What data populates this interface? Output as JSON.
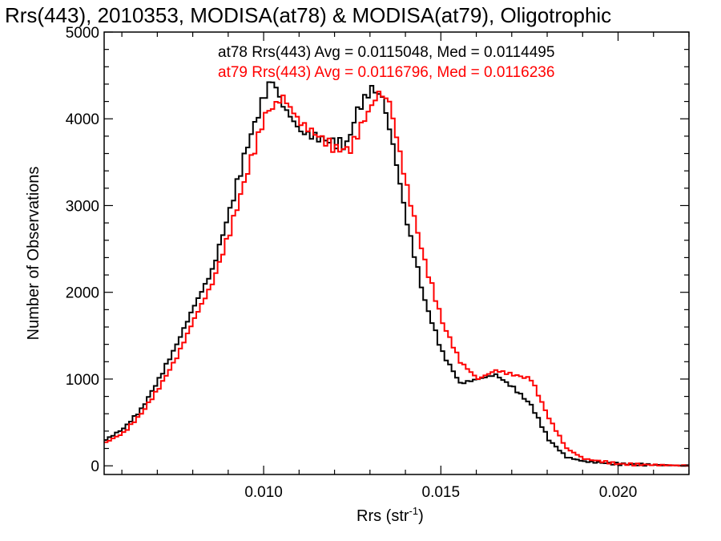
{
  "chart_data": {
    "type": "line",
    "title": "Rrs(443), 2010353, MODISA(at78) & MODISA(at79), Oligotrophic",
    "xlabel_main": "Rrs (str",
    "xlabel_sup": "-1",
    "xlabel_close": ")",
    "ylabel": "Number of Observations",
    "xlim": [
      0.0055,
      0.022
    ],
    "ylim": [
      -100,
      5000
    ],
    "xticks": [
      0.01,
      0.015,
      0.02
    ],
    "xtick_labels": [
      "0.010",
      "0.015",
      "0.020"
    ],
    "yticks": [
      0,
      1000,
      2000,
      3000,
      4000,
      5000
    ],
    "ytick_labels": [
      "0",
      "1000",
      "2000",
      "3000",
      "4000",
      "5000"
    ],
    "grid": false,
    "legend_placement": "top-right",
    "series": [
      {
        "name": "at78",
        "color": "#000000",
        "legend": "at78 Rrs(443) Avg = 0.0115048, Med = 0.0114495",
        "points": [
          [
            0.0055,
            300
          ],
          [
            0.006,
            430
          ],
          [
            0.0065,
            650
          ],
          [
            0.007,
            1000
          ],
          [
            0.0075,
            1400
          ],
          [
            0.008,
            1850
          ],
          [
            0.0085,
            2250
          ],
          [
            0.009,
            2950
          ],
          [
            0.0095,
            3700
          ],
          [
            0.01,
            4300
          ],
          [
            0.0102,
            4450
          ],
          [
            0.0105,
            4150
          ],
          [
            0.011,
            3850
          ],
          [
            0.0115,
            3780
          ],
          [
            0.012,
            3720
          ],
          [
            0.0123,
            3700
          ],
          [
            0.0126,
            4100
          ],
          [
            0.013,
            4350
          ],
          [
            0.0133,
            4250
          ],
          [
            0.0136,
            3700
          ],
          [
            0.014,
            2800
          ],
          [
            0.0145,
            1900
          ],
          [
            0.015,
            1300
          ],
          [
            0.0155,
            950
          ],
          [
            0.016,
            1000
          ],
          [
            0.0165,
            1050
          ],
          [
            0.017,
            900
          ],
          [
            0.0175,
            700
          ],
          [
            0.018,
            300
          ],
          [
            0.0185,
            100
          ],
          [
            0.019,
            50
          ],
          [
            0.02,
            20
          ],
          [
            0.022,
            0
          ]
        ]
      },
      {
        "name": "at79",
        "color": "#ff0000",
        "legend": "at79 Rrs(443) Avg = 0.0116796, Med = 0.0116236",
        "points": [
          [
            0.0055,
            270
          ],
          [
            0.006,
            380
          ],
          [
            0.0065,
            600
          ],
          [
            0.007,
            900
          ],
          [
            0.0075,
            1250
          ],
          [
            0.008,
            1700
          ],
          [
            0.0085,
            2100
          ],
          [
            0.009,
            2700
          ],
          [
            0.0095,
            3400
          ],
          [
            0.01,
            4050
          ],
          [
            0.0105,
            4250
          ],
          [
            0.011,
            3950
          ],
          [
            0.0115,
            3800
          ],
          [
            0.012,
            3650
          ],
          [
            0.0124,
            3650
          ],
          [
            0.0128,
            4000
          ],
          [
            0.0132,
            4300
          ],
          [
            0.0135,
            4200
          ],
          [
            0.014,
            3200
          ],
          [
            0.0145,
            2350
          ],
          [
            0.015,
            1650
          ],
          [
            0.0155,
            1200
          ],
          [
            0.016,
            1000
          ],
          [
            0.0165,
            1100
          ],
          [
            0.017,
            1050
          ],
          [
            0.0175,
            1000
          ],
          [
            0.018,
            550
          ],
          [
            0.0185,
            200
          ],
          [
            0.019,
            80
          ],
          [
            0.02,
            20
          ],
          [
            0.022,
            0
          ]
        ]
      }
    ]
  }
}
